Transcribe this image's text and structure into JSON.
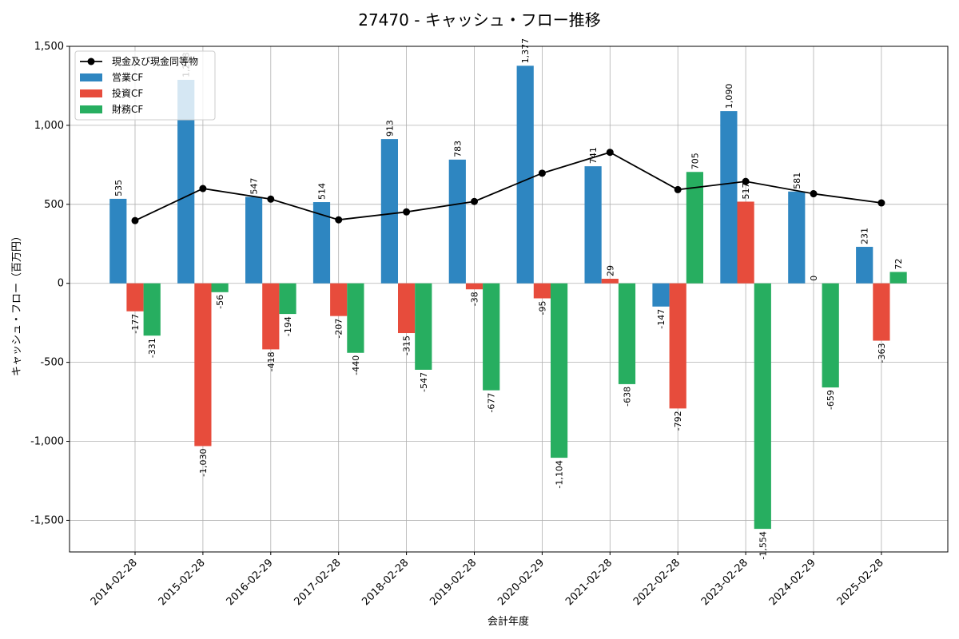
{
  "chart_data": {
    "type": "bar",
    "title": "27470 - キャッシュ・フロー推移",
    "xlabel": "会計年度",
    "ylabel": "キャッシュ・フロー（百万円）",
    "ylim": [
      -1700,
      1500
    ],
    "yticks": [
      -1500,
      -1000,
      -500,
      0,
      500,
      1000,
      1500
    ],
    "ytick_labels": [
      "-1,500",
      "-1,000",
      "-500",
      "0",
      "500",
      "1,000",
      "1,500"
    ],
    "grid": true,
    "legend_position": "top-left",
    "categories": [
      "2014-02-28",
      "2015-02-28",
      "2016-02-29",
      "2017-02-28",
      "2018-02-28",
      "2019-02-28",
      "2020-02-29",
      "2021-02-28",
      "2022-02-28",
      "2023-02-28",
      "2024-02-29",
      "2025-02-28"
    ],
    "series": [
      {
        "name": "営業CF",
        "kind": "bar",
        "color": "#2e86c1",
        "values": [
          535,
          1288,
          547,
          514,
          913,
          783,
          1377,
          741,
          -147,
          1090,
          581,
          231
        ],
        "labels": [
          "535",
          "1,288",
          "547",
          "514",
          "913",
          "783",
          "1,377",
          "741",
          "-147",
          "1,090",
          "581",
          "231"
        ]
      },
      {
        "name": "投資CF",
        "kind": "bar",
        "color": "#e74c3c",
        "values": [
          -177,
          -1030,
          -418,
          -207,
          -315,
          -38,
          -95,
          29,
          -792,
          517,
          0,
          -363
        ],
        "labels": [
          "-177",
          "-1,030",
          "-418",
          "-207",
          "-315",
          "-38",
          "-95",
          "29",
          "-792",
          "517",
          "0",
          "-363"
        ]
      },
      {
        "name": "財務CF",
        "kind": "bar",
        "color": "#27ae60",
        "values": [
          -331,
          -56,
          -194,
          -440,
          -547,
          -677,
          -1104,
          -638,
          705,
          -1554,
          -659,
          72
        ],
        "labels": [
          "-331",
          "-56",
          "-194",
          "-440",
          "-547",
          "-677",
          "-1,104",
          "-638",
          "705",
          "-1,554",
          "-659",
          "72"
        ]
      },
      {
        "name": "現金及び現金同等物",
        "kind": "line",
        "color": "#000000",
        "values": [
          397,
          600,
          533,
          402,
          452,
          518,
          697,
          829,
          593,
          645,
          567,
          509
        ]
      }
    ]
  }
}
